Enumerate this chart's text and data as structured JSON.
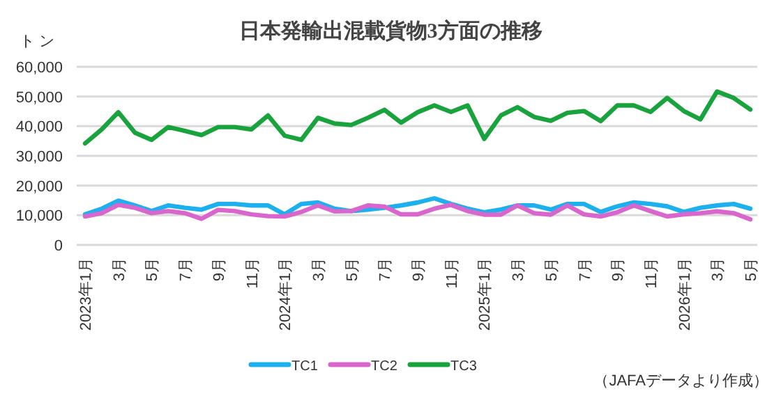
{
  "chart_data": {
    "type": "line",
    "title": "日本発輸出混載貨物3方面の推移",
    "ylabel": "トン",
    "categories": [
      "2023年1月",
      null,
      "3月",
      null,
      "5月",
      null,
      "7月",
      null,
      "9月",
      null,
      "11月",
      null,
      "2024年1月",
      null,
      "3月",
      null,
      "5月",
      null,
      "7月",
      null,
      "9月",
      null,
      "11月",
      null,
      "2025年1月",
      null,
      "3月",
      null,
      "5月",
      null,
      "7月",
      null,
      "9月",
      null,
      "11月",
      null,
      "2026年1月",
      null,
      "3月",
      null,
      "5月"
    ],
    "series": [
      {
        "name": "TC1",
        "color": "#1cb0ee",
        "values": [
          10300,
          12200,
          14900,
          13300,
          11400,
          13300,
          12500,
          11900,
          13800,
          13800,
          13300,
          13300,
          10300,
          13800,
          14300,
          12200,
          11400,
          11900,
          12500,
          13300,
          14300,
          15700,
          13800,
          12200,
          11000,
          11900,
          13300,
          13300,
          11900,
          13800,
          13800,
          11100,
          13000,
          14300,
          13800,
          13000,
          11100,
          12500,
          13300,
          13800,
          12200
        ]
      },
      {
        "name": "TC2",
        "color": "#d966cc",
        "values": [
          9600,
          10700,
          13500,
          12500,
          10700,
          11400,
          10700,
          8800,
          11800,
          11400,
          10300,
          9700,
          9600,
          11100,
          13300,
          11300,
          11400,
          13300,
          12900,
          10300,
          10300,
          12200,
          13500,
          11400,
          10200,
          10200,
          13300,
          10700,
          10200,
          13300,
          10300,
          9600,
          11000,
          13300,
          11400,
          9600,
          10300,
          10700,
          11300,
          10700,
          8600
        ]
      },
      {
        "name": "TC3",
        "color": "#18a33c",
        "values": [
          34200,
          38900,
          44700,
          37800,
          35400,
          39700,
          38400,
          37000,
          39700,
          39700,
          38900,
          43600,
          36800,
          35400,
          42800,
          40900,
          40400,
          42800,
          45500,
          41200,
          44700,
          47000,
          44800,
          47000,
          35700,
          43600,
          46400,
          43100,
          41800,
          44500,
          45100,
          41700,
          47000,
          47000,
          44800,
          49500,
          45100,
          42300,
          51700,
          49500,
          45600
        ]
      }
    ],
    "ylim": [
      0,
      60000
    ],
    "yticks": [
      0,
      {
        "value": 10000,
        "label": "10,000"
      },
      {
        "value": 20000,
        "label": "20,000"
      },
      {
        "value": 30000,
        "label": "30,000"
      },
      {
        "value": 40000,
        "label": "40,000"
      },
      {
        "value": 50000,
        "label": "50,000"
      },
      {
        "value": 60000,
        "label": "60,000"
      }
    ],
    "grid": "y",
    "legend": "bottom",
    "line_style": "solid",
    "annotations": [
      "（JAFAデータより作成）"
    ]
  }
}
